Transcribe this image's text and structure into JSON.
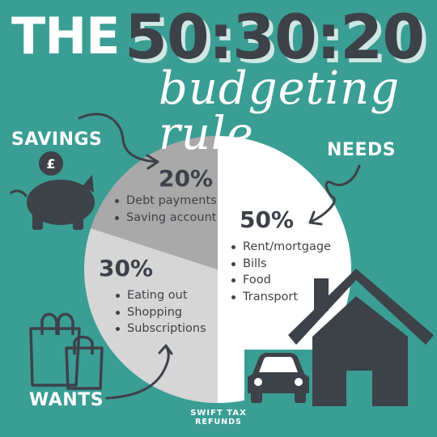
{
  "title": {
    "prefix": "THE",
    "numbers": "50:30:20",
    "subtitle": "budgeting rule"
  },
  "savings": {
    "label": "SAVINGS",
    "percent": "20%",
    "items": [
      "Debt payments",
      "Saving account"
    ],
    "currency_symbol": "£",
    "share": 0.2,
    "color": "#a9a9a9"
  },
  "needs": {
    "label": "NEEDS",
    "percent": "50%",
    "items": [
      "Rent/mortgage",
      "Bills",
      "Food",
      "Transport"
    ],
    "share": 0.5,
    "color": "#ffffff"
  },
  "wants": {
    "label": "WANTS",
    "percent": "30%",
    "items": [
      "Eating out",
      "Shopping",
      "Subscriptions"
    ],
    "share": 0.3,
    "color": "#d6d6d6"
  },
  "icons": [
    "piggy-bank-icon",
    "shopping-bags-icon",
    "house-icon",
    "car-icon",
    "curved-arrow-icon"
  ],
  "brand": {
    "line1": "SWIFT TAX",
    "line2": "REFUNDS"
  },
  "colors": {
    "background": "#3a9e94",
    "dark": "#3d4148",
    "white": "#ffffff"
  }
}
